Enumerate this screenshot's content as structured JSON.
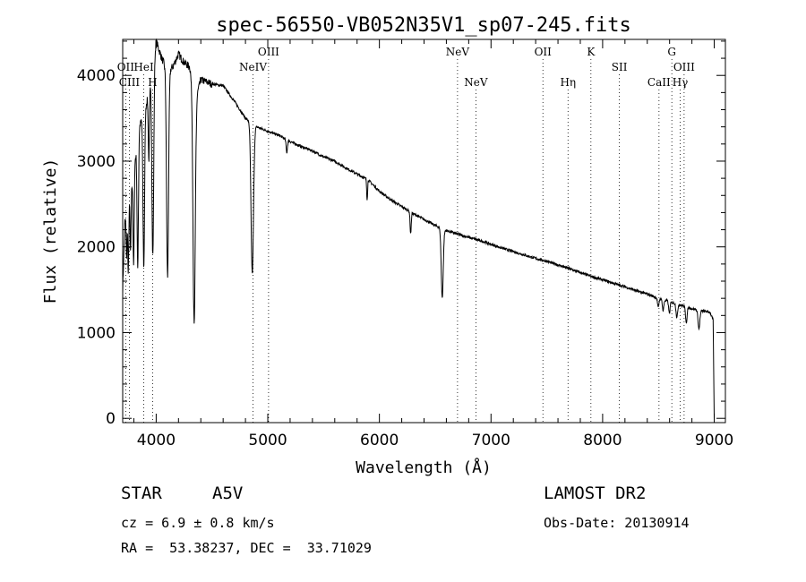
{
  "chart_data": {
    "type": "line",
    "title": "spec-56550-VB052N35V1_sp07-245.fits",
    "xlabel": "Wavelength (Å)",
    "ylabel": "Flux (relative)",
    "xlim": [
      3700,
      9100
    ],
    "ylim": [
      -50,
      4420
    ],
    "x_ticks": [
      4000,
      5000,
      6000,
      7000,
      8000,
      9000
    ],
    "y_ticks": [
      0,
      1000,
      2000,
      3000,
      4000
    ],
    "grid": false,
    "continuum": [
      [
        3700,
        1500
      ],
      [
        3720,
        2300
      ],
      [
        3760,
        2500
      ],
      [
        3800,
        2900
      ],
      [
        3850,
        3400
      ],
      [
        3900,
        3600
      ],
      [
        3950,
        3900
      ],
      [
        4000,
        4400
      ],
      [
        4050,
        4200
      ],
      [
        4100,
        4050
      ],
      [
        4150,
        4100
      ],
      [
        4200,
        4250
      ],
      [
        4250,
        4150
      ],
      [
        4300,
        4100
      ],
      [
        4350,
        3700
      ],
      [
        4400,
        3950
      ],
      [
        4500,
        3900
      ],
      [
        4600,
        3880
      ],
      [
        4700,
        3700
      ],
      [
        4800,
        3500
      ],
      [
        4850,
        3450
      ],
      [
        4900,
        3400
      ],
      [
        5000,
        3350
      ],
      [
        5100,
        3300
      ],
      [
        5200,
        3230
      ],
      [
        5300,
        3170
      ],
      [
        5400,
        3120
      ],
      [
        5500,
        3050
      ],
      [
        5600,
        3000
      ],
      [
        5700,
        2920
      ],
      [
        5800,
        2850
      ],
      [
        5900,
        2780
      ],
      [
        6000,
        2650
      ],
      [
        6100,
        2550
      ],
      [
        6200,
        2470
      ],
      [
        6300,
        2390
      ],
      [
        6400,
        2320
      ],
      [
        6500,
        2250
      ],
      [
        6600,
        2190
      ],
      [
        6700,
        2150
      ],
      [
        6800,
        2110
      ],
      [
        6900,
        2075
      ],
      [
        7000,
        2030
      ],
      [
        7100,
        1985
      ],
      [
        7200,
        1945
      ],
      [
        7300,
        1905
      ],
      [
        7400,
        1865
      ],
      [
        7500,
        1830
      ],
      [
        7600,
        1790
      ],
      [
        7700,
        1745
      ],
      [
        7800,
        1700
      ],
      [
        7900,
        1655
      ],
      [
        8000,
        1615
      ],
      [
        8100,
        1575
      ],
      [
        8200,
        1535
      ],
      [
        8300,
        1490
      ],
      [
        8400,
        1450
      ],
      [
        8500,
        1400
      ],
      [
        8600,
        1360
      ],
      [
        8700,
        1320
      ],
      [
        8800,
        1280
      ],
      [
        8900,
        1250
      ],
      [
        8960,
        1240
      ],
      [
        8990,
        1150
      ],
      [
        9000,
        0
      ]
    ],
    "absorption_lines": [
      {
        "center": 3735,
        "depth": 500,
        "width": 4
      },
      {
        "center": 3750,
        "depth": 800,
        "width": 4
      },
      {
        "center": 3771,
        "depth": 700,
        "width": 4
      },
      {
        "center": 3798,
        "depth": 1100,
        "width": 5
      },
      {
        "center": 3835,
        "depth": 1500,
        "width": 6
      },
      {
        "center": 3889,
        "depth": 1800,
        "width": 7
      },
      {
        "center": 3934,
        "depth": 800,
        "width": 5
      },
      {
        "center": 3970,
        "depth": 2200,
        "width": 8
      },
      {
        "center": 4102,
        "depth": 2400,
        "width": 9
      },
      {
        "center": 4340,
        "depth": 2700,
        "width": 10
      },
      {
        "center": 4861,
        "depth": 1750,
        "width": 11
      },
      {
        "center": 5170,
        "depth": 150,
        "width": 6
      },
      {
        "center": 5890,
        "depth": 230,
        "width": 4
      },
      {
        "center": 6280,
        "depth": 250,
        "width": 5
      },
      {
        "center": 6563,
        "depth": 800,
        "width": 9
      },
      {
        "center": 8498,
        "depth": 110,
        "width": 6
      },
      {
        "center": 8542,
        "depth": 130,
        "width": 6
      },
      {
        "center": 8598,
        "depth": 140,
        "width": 6
      },
      {
        "center": 8665,
        "depth": 160,
        "width": 7
      },
      {
        "center": 8750,
        "depth": 180,
        "width": 7
      },
      {
        "center": 8863,
        "depth": 220,
        "width": 8
      }
    ],
    "line_markers": [
      {
        "label": "OII",
        "wavelength": 3727,
        "row": 1
      },
      {
        "label": "CIII",
        "wavelength": 3760,
        "row": 2
      },
      {
        "label": "HeI",
        "wavelength": 3889,
        "row": 1
      },
      {
        "label": "H",
        "wavelength": 3968,
        "row": 2
      },
      {
        "label": "OIII",
        "wavelength": 5007,
        "row": 0
      },
      {
        "label": "NeIV",
        "wavelength": 4868,
        "row": 1
      },
      {
        "label": "NeV",
        "wavelength": 6700,
        "row": 0
      },
      {
        "label": "NeV",
        "wavelength": 6865,
        "row": 2
      },
      {
        "label": "OII",
        "wavelength": 7465,
        "row": 0
      },
      {
        "label": "Hη",
        "wavelength": 7690,
        "row": 2
      },
      {
        "label": "K",
        "wavelength": 7895,
        "row": 0
      },
      {
        "label": "SII",
        "wavelength": 8150,
        "row": 1
      },
      {
        "label": "CaII",
        "wavelength": 8505,
        "row": 2
      },
      {
        "label": "G",
        "wavelength": 8620,
        "row": 0
      },
      {
        "label": "Hγ",
        "wavelength": 8695,
        "row": 2
      },
      {
        "label": "OIII",
        "wavelength": 8730,
        "row": 1
      }
    ]
  },
  "footer": {
    "object_class": "STAR",
    "subclass": "A5V",
    "survey": "LAMOST DR2",
    "redshift": "cz = 6.9 ± 0.8 km/s",
    "obs_date": "Obs-Date: 20130914",
    "coords": "RA =  53.38237, DEC =  33.71029"
  }
}
